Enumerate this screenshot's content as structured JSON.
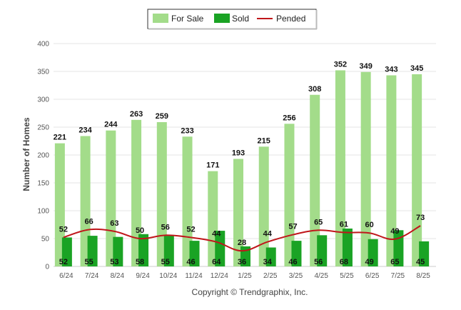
{
  "chart_data": {
    "type": "bar",
    "ylabel": "Number of Homes",
    "ylim": [
      0,
      400
    ],
    "yticks": [
      0,
      50,
      100,
      150,
      200,
      250,
      300,
      350,
      400
    ],
    "grid": true,
    "legend_position": "top-center",
    "categories": [
      "6/24",
      "7/24",
      "8/24",
      "9/24",
      "10/24",
      "11/24",
      "12/24",
      "1/25",
      "2/25",
      "3/25",
      "4/25",
      "5/25",
      "6/25",
      "7/25",
      "8/25"
    ],
    "series": [
      {
        "name": "For Sale",
        "type": "bar",
        "color": "#a3dc8a",
        "values": [
          221,
          234,
          244,
          263,
          259,
          233,
          171,
          193,
          215,
          256,
          308,
          352,
          349,
          343,
          345
        ]
      },
      {
        "name": "Sold",
        "type": "bar",
        "color": "#1aa324",
        "values": [
          52,
          55,
          53,
          58,
          55,
          46,
          64,
          36,
          34,
          46,
          56,
          68,
          49,
          65,
          45
        ]
      },
      {
        "name": "Pended",
        "type": "line",
        "color": "#c0161b",
        "values": [
          52,
          66,
          63,
          50,
          56,
          52,
          44,
          28,
          44,
          57,
          65,
          61,
          60,
          49,
          73
        ]
      }
    ]
  },
  "footer": {
    "copyright": "Copyright © Trendgraphix, Inc."
  }
}
